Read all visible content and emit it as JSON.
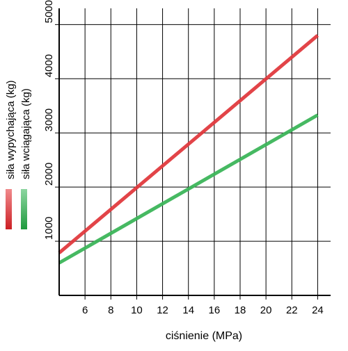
{
  "chart_data": {
    "type": "line",
    "xlabel": "ciśnienie (MPa)",
    "x_ticks": [
      6,
      8,
      10,
      12,
      14,
      16,
      18,
      20,
      22,
      24
    ],
    "y_ticks": [
      1000,
      2000,
      3000,
      4000,
      5000
    ],
    "xlim": [
      4,
      25
    ],
    "ylim": [
      0,
      5300
    ],
    "grid": true,
    "legend_position": "left",
    "series": [
      {
        "name": "siła wypychająca (kg)",
        "color": "#e03a3e",
        "x": [
          4,
          24
        ],
        "values": [
          785,
          4800
        ]
      },
      {
        "name": "siła wciągająca (kg)",
        "color": "#3cb55a",
        "x": [
          4,
          24
        ],
        "values": [
          600,
          3330
        ]
      }
    ]
  }
}
